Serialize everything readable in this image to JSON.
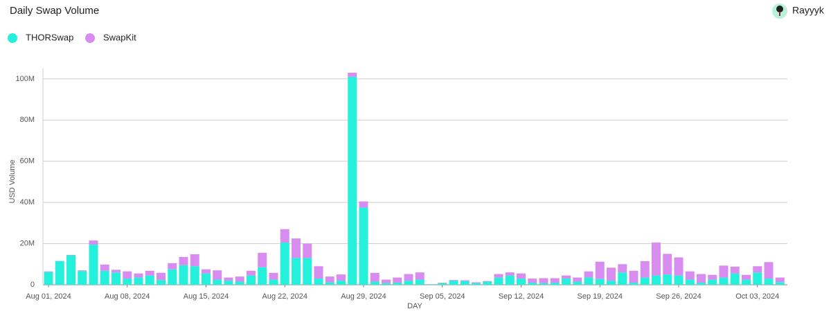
{
  "user": {
    "name": "Rayyyk"
  },
  "chart_data": {
    "type": "bar",
    "stacked": true,
    "title": "Daily Swap Volume",
    "x_label": "DAY",
    "y_label": "USD Volume",
    "categories": [
      "Aug 01, 2024",
      null,
      null,
      null,
      null,
      null,
      null,
      "Aug 08, 2024",
      null,
      null,
      null,
      null,
      null,
      null,
      "Aug 15, 2024",
      null,
      null,
      null,
      null,
      null,
      null,
      "Aug 22, 2024",
      null,
      null,
      null,
      null,
      null,
      null,
      "Aug 29, 2024",
      null,
      null,
      null,
      null,
      null,
      null,
      "Sep 05, 2024",
      null,
      null,
      null,
      null,
      null,
      null,
      "Sep 12, 2024",
      null,
      null,
      null,
      null,
      null,
      null,
      "Sep 19, 2024",
      null,
      null,
      null,
      null,
      null,
      null,
      "Sep 26, 2024",
      null,
      null,
      null,
      null,
      null,
      null,
      "Oct 03, 2024",
      null,
      null
    ],
    "series": [
      {
        "name": "THORSwap",
        "color": "#24f0dc",
        "values": [
          6200000,
          11500000,
          14300000,
          6700000,
          19500000,
          6800000,
          6000000,
          3000000,
          3500000,
          4500000,
          2300000,
          7500000,
          9500000,
          9000000,
          5500000,
          2500000,
          2000000,
          1500000,
          4500000,
          8500000,
          2500000,
          20500000,
          13000000,
          13000000,
          3000000,
          1200000,
          2000000,
          101000000,
          37500000,
          1500000,
          800000,
          1000000,
          2000000,
          2500000,
          200000,
          800000,
          2000000,
          1800000,
          800000,
          1500000,
          3500000,
          4500000,
          3000000,
          1000000,
          800000,
          1000000,
          3000000,
          1500000,
          3500000,
          2800000,
          2000000,
          6000000,
          1000000,
          3500000,
          4500000,
          5000000,
          4500000,
          2500000,
          1000000,
          2500000,
          3500000,
          5500000,
          2500000,
          6000000,
          3000000,
          1300000
        ]
      },
      {
        "name": "SwapKit",
        "color": "#d88cf0",
        "values": [
          300000,
          100000,
          200000,
          300000,
          2000000,
          3000000,
          1300000,
          3500000,
          2000000,
          2300000,
          3500000,
          3000000,
          4000000,
          5800000,
          2000000,
          4500000,
          1500000,
          2500000,
          2300000,
          7000000,
          3300000,
          6500000,
          9500000,
          7000000,
          6000000,
          2800000,
          3000000,
          2000000,
          3000000,
          4300000,
          1700000,
          2500000,
          3200000,
          3500000,
          100000,
          200000,
          300000,
          400000,
          400000,
          300000,
          1700000,
          1500000,
          2500000,
          2000000,
          2400000,
          2200000,
          1500000,
          2000000,
          3000000,
          8400000,
          6300000,
          4000000,
          5800000,
          8000000,
          16000000,
          10000000,
          8800000,
          4000000,
          4200000,
          2300000,
          5800000,
          3300000,
          2300000,
          3000000,
          8000000,
          2200000
        ]
      }
    ],
    "ylim": [
      0,
      105000000
    ],
    "yticks": [
      0,
      {
        "value": 20000000,
        "label": "20M"
      },
      {
        "value": 40000000,
        "label": "40M"
      },
      {
        "value": 60000000,
        "label": "60M"
      },
      {
        "value": 80000000,
        "label": "80M"
      },
      {
        "value": 100000000,
        "label": "100M"
      }
    ],
    "grid": true,
    "legend": "top-left"
  }
}
